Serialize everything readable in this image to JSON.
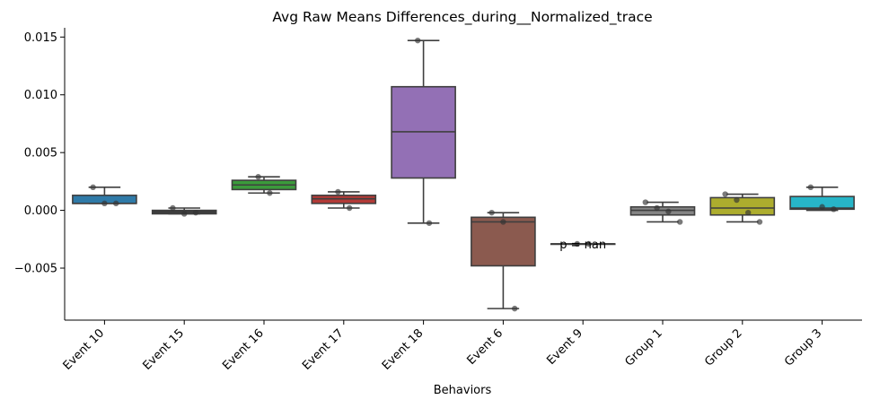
{
  "chart_data": {
    "type": "box",
    "title": "Avg Raw Means Differences_during__Normalized_trace",
    "xlabel": "Behaviors",
    "ylabel": "",
    "ylim": [
      -0.0095,
      0.0158
    ],
    "yticks": [
      -0.005,
      0.0,
      0.005,
      0.01,
      0.015
    ],
    "ytick_labels": [
      "−0.005",
      "0.000",
      "0.005",
      "0.010",
      "0.015"
    ],
    "grid": false,
    "categories": [
      "Event 10",
      "Event 15",
      "Event 16",
      "Event 17",
      "Event 18",
      "Event 6",
      "Event 9",
      "Group 1",
      "Group 2",
      "Group 3"
    ],
    "colors": [
      "#2f7aa8",
      "#3a3a3a",
      "#3b9a3b",
      "#b23a37",
      "#9370b5",
      "#8b5a4f",
      "#2b2b2b",
      "#858585",
      "#adad2e",
      "#27b5c8"
    ],
    "boxes": [
      {
        "category": "Event 10",
        "whislo": 0.0006,
        "q1": 0.0006,
        "med": 0.0006,
        "q3": 0.0013,
        "whishi": 0.002
      },
      {
        "category": "Event 15",
        "whislo": -0.0003,
        "q1": -0.0003,
        "med": -0.0002,
        "q3": 0.0,
        "whishi": 0.0002
      },
      {
        "category": "Event 16",
        "whislo": 0.0015,
        "q1": 0.0018,
        "med": 0.0022,
        "q3": 0.0026,
        "whishi": 0.0029
      },
      {
        "category": "Event 17",
        "whislo": 0.0002,
        "q1": 0.0006,
        "med": 0.001,
        "q3": 0.0013,
        "whishi": 0.0016
      },
      {
        "category": "Event 18",
        "whislo": -0.0011,
        "q1": 0.0028,
        "med": 0.0068,
        "q3": 0.0107,
        "whishi": 0.0147
      },
      {
        "category": "Event 6",
        "whislo": -0.0085,
        "q1": -0.0048,
        "med": -0.001,
        "q3": -0.0006,
        "whishi": -0.0002
      },
      {
        "category": "Event 9",
        "whislo": -0.0029,
        "q1": -0.0029,
        "med": -0.0029,
        "q3": -0.0029,
        "whishi": -0.0029
      },
      {
        "category": "Group 1",
        "whislo": -0.001,
        "q1": -0.0004,
        "med": 0.0,
        "q3": 0.0003,
        "whishi": 0.0007
      },
      {
        "category": "Group 2",
        "whislo": -0.001,
        "q1": -0.0004,
        "med": 0.0002,
        "q3": 0.0011,
        "whishi": 0.0014
      },
      {
        "category": "Group 3",
        "whislo": 0.0,
        "q1": 0.0001,
        "med": 0.0002,
        "q3": 0.0012,
        "whishi": 0.002
      }
    ],
    "points": [
      {
        "category": "Event 10",
        "values": [
          0.002,
          0.0006,
          0.0006
        ]
      },
      {
        "category": "Event 15",
        "values": [
          0.0002,
          -0.0003,
          -0.0002
        ]
      },
      {
        "category": "Event 16",
        "values": [
          0.0029,
          0.0015
        ]
      },
      {
        "category": "Event 17",
        "values": [
          0.0016,
          0.0002
        ]
      },
      {
        "category": "Event 18",
        "values": [
          0.0147,
          -0.0011
        ]
      },
      {
        "category": "Event 6",
        "values": [
          -0.0002,
          -0.001,
          -0.0085
        ]
      },
      {
        "category": "Event 9",
        "values": [
          -0.0029,
          -0.0029
        ]
      },
      {
        "category": "Group 1",
        "values": [
          0.0007,
          0.0002,
          -0.0001,
          -0.001
        ]
      },
      {
        "category": "Group 2",
        "values": [
          0.0014,
          0.0009,
          -0.0002,
          -0.001
        ]
      },
      {
        "category": "Group 3",
        "values": [
          0.002,
          0.0003,
          0.0001
        ]
      }
    ],
    "annotations": [
      {
        "category": "Event 9",
        "text": "p = nan",
        "y": -0.0029
      }
    ]
  }
}
